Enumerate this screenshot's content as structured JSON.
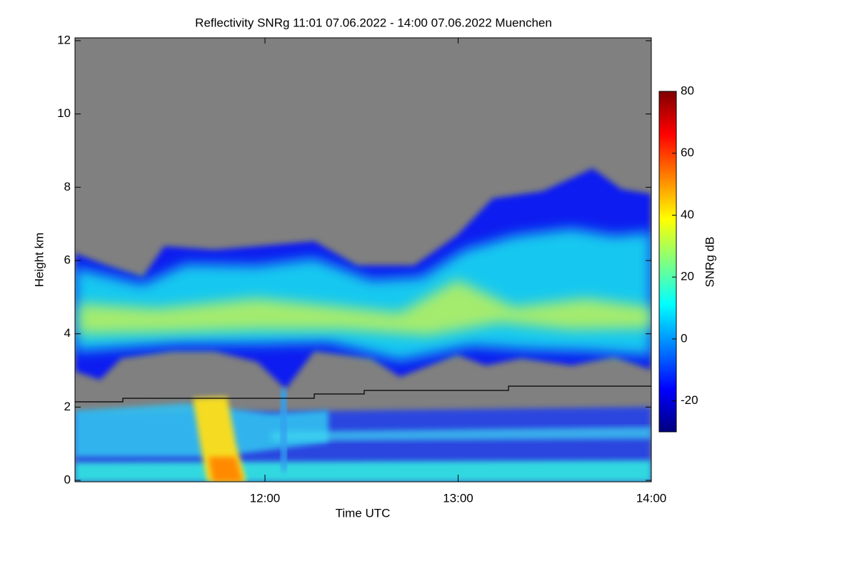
{
  "chart_data": {
    "type": "heatmap",
    "title": "Reflectivity SNRg   11:01 07.06.2022 - 14:00 07.06.2022 Muenchen",
    "x_label": "Time UTC",
    "y_label": "Height km",
    "colorbar_label": "SNRg dB",
    "xlim": [
      11.0167,
      14.0
    ],
    "xticks": [
      {
        "value": 12,
        "label": "12:00"
      },
      {
        "value": 13,
        "label": "13:00"
      },
      {
        "value": 14,
        "label": "14:00"
      }
    ],
    "ylim": [
      0,
      12
    ],
    "yticks": [
      0,
      2,
      4,
      6,
      8,
      10,
      12
    ],
    "clim": [
      -30,
      80
    ],
    "cticks": [
      -20,
      0,
      20,
      40,
      60,
      80
    ],
    "colormap": [
      "#00007f",
      "#0000ff",
      "#0080ff",
      "#00ffff",
      "#80ff80",
      "#ffff00",
      "#ff8000",
      "#ff0000",
      "#7f0000"
    ],
    "background_color": "#808080"
  }
}
